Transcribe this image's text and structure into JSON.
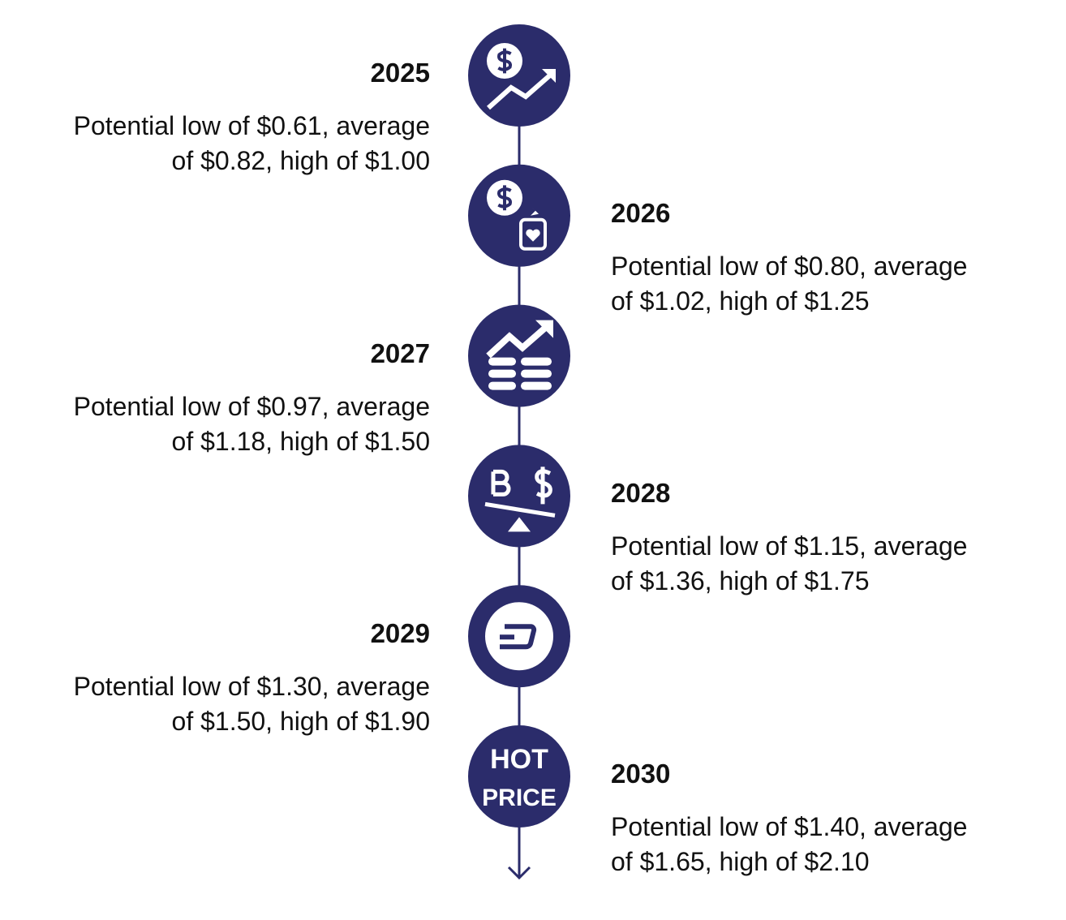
{
  "timeline": {
    "items": [
      {
        "year": "2025",
        "description": [
          "Potential low of $0.61, average",
          "of $0.82, high of $1.00"
        ]
      },
      {
        "year": "2026",
        "description": [
          "Potential low of $0.80, average",
          "of $1.02, high of $1.25"
        ]
      },
      {
        "year": "2027",
        "description": [
          "Potential low of $0.97, average",
          "of $1.18, high of $1.50"
        ]
      },
      {
        "year": "2028",
        "description": [
          "Potential low of $1.15, average",
          "of $1.36, high of $1.75"
        ]
      },
      {
        "year": "2029",
        "description": [
          "Potential low of $1.30, average",
          "of $1.50, high of $1.90"
        ]
      },
      {
        "year": "2030",
        "description": [
          "Potential low of $1.40, average",
          "of $1.65, high of $2.10"
        ],
        "icon_text": [
          "HOT",
          "PRICE"
        ]
      }
    ]
  }
}
